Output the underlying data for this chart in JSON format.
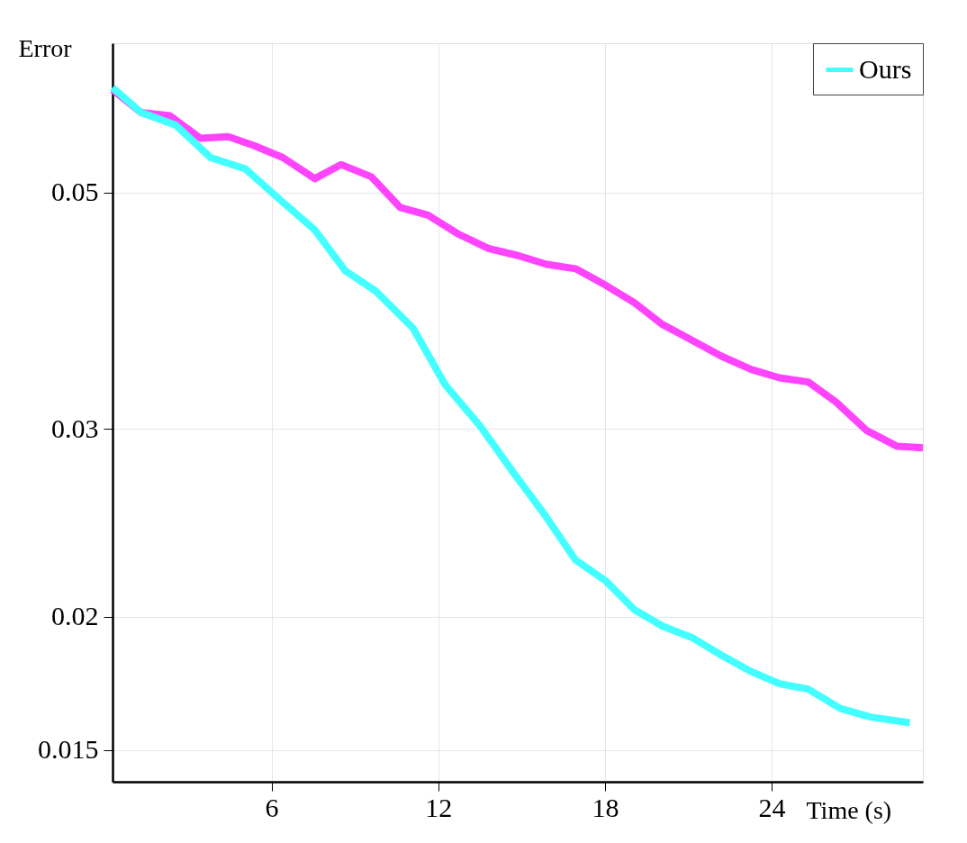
{
  "chart_data": {
    "type": "line",
    "xlabel": "Time (s)",
    "ylabel": "Error",
    "xlim": [
      0.28,
      29.44
    ],
    "xticks": [
      6,
      12,
      18,
      24
    ],
    "ylim": [
      0.014,
      0.069
    ],
    "yticks": [
      0.015,
      0.02,
      0.03,
      0.05
    ],
    "log": "y",
    "grid": true,
    "legend": "top right",
    "marker": "none",
    "line_style": "solid",
    "series": [
      {
        "color": "#ff44ff",
        "x": [
          0.28,
          1.31,
          2.34,
          3.44,
          4.44,
          5.38,
          6.41,
          7.56,
          8.5,
          9.6,
          10.63,
          11.63,
          12.72,
          13.81,
          14.9,
          15.9,
          16.94,
          18.03,
          19.06,
          20.06,
          21.16,
          22.19,
          23.28,
          24.28,
          25.31,
          26.31,
          27.41,
          28.5,
          29.44
        ],
        "values": [
          0.0624,
          0.0594,
          0.059,
          0.0562,
          0.0564,
          0.0553,
          0.0539,
          0.0515,
          0.0531,
          0.0517,
          0.0484,
          0.0476,
          0.0457,
          0.0443,
          0.0436,
          0.0428,
          0.0424,
          0.0409,
          0.0394,
          0.0376,
          0.0363,
          0.0351,
          0.0341,
          0.0335,
          0.0332,
          0.0318,
          0.0299,
          0.0289,
          0.0288
        ]
      },
      {
        "name": "Ours",
        "color": "#44ffff",
        "x": [
          0.28,
          1.31,
          2.56,
          3.81,
          5.06,
          6.31,
          7.56,
          8.66,
          9.75,
          11.09,
          12.25,
          13.5,
          14.75,
          15.84,
          16.94,
          18.03,
          19.06,
          20.06,
          21.16,
          22.19,
          23.19,
          24.28,
          25.31,
          26.47,
          27.56,
          28.97
        ],
        "values": [
          0.0627,
          0.0594,
          0.0578,
          0.0539,
          0.0526,
          0.0492,
          0.0461,
          0.0422,
          0.0404,
          0.0373,
          0.033,
          0.0302,
          0.0272,
          0.0249,
          0.0226,
          0.0216,
          0.0203,
          0.0196,
          0.0191,
          0.0184,
          0.0178,
          0.0173,
          0.0171,
          0.0164,
          0.0161,
          0.0159
        ]
      }
    ]
  }
}
